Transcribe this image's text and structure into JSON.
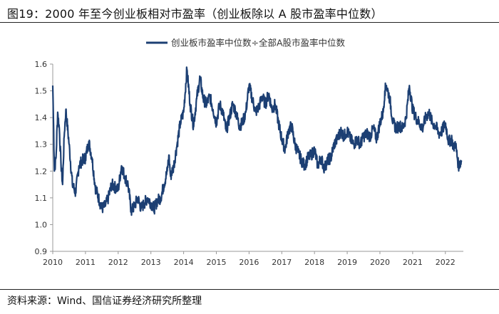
{
  "header": {
    "title": "图19：2000 年至今创业板相对市盈率（创业板除以 A 股市盈率中位数）"
  },
  "footer": {
    "source": "资料来源：Wind、国信证券经济研究所整理"
  },
  "colors": {
    "series": "#1c3f73",
    "axis": "#999999",
    "text": "#333333"
  },
  "chart_data": {
    "type": "line",
    "title": "",
    "xlabel": "",
    "ylabel": "",
    "x_ticks": [
      "2010",
      "2011",
      "2012",
      "2013",
      "2014",
      "2015",
      "2016",
      "2017",
      "2018",
      "2019",
      "2020",
      "2021",
      "2022"
    ],
    "y_ticks": [
      "0.9",
      "1.0",
      "1.1",
      "1.2",
      "1.3",
      "1.4",
      "1.5",
      "1.6"
    ],
    "ylim": [
      0.9,
      1.6
    ],
    "xlim": [
      2010.0,
      2022.55
    ],
    "grid": false,
    "legend": "top-center",
    "series": [
      {
        "name": "创业板市盈率中位数÷全部A股市盈率中位数",
        "x": [
          2010.0,
          2010.02,
          2010.05,
          2010.1,
          2010.15,
          2010.2,
          2010.25,
          2010.3,
          2010.35,
          2010.4,
          2010.5,
          2010.6,
          2010.7,
          2010.8,
          2010.9,
          2011.0,
          2011.1,
          2011.2,
          2011.3,
          2011.4,
          2011.5,
          2011.6,
          2011.7,
          2011.8,
          2012.0,
          2012.1,
          2012.2,
          2012.3,
          2012.4,
          2012.5,
          2012.6,
          2012.7,
          2012.8,
          2012.9,
          2013.0,
          2013.1,
          2013.2,
          2013.3,
          2013.4,
          2013.5,
          2013.55,
          2013.6,
          2013.7,
          2013.8,
          2013.9,
          2014.0,
          2014.1,
          2014.2,
          2014.3,
          2014.4,
          2014.5,
          2014.6,
          2014.7,
          2014.8,
          2014.9,
          2015.0,
          2015.1,
          2015.2,
          2015.3,
          2015.4,
          2015.5,
          2015.6,
          2015.7,
          2015.8,
          2015.9,
          2016.0,
          2016.1,
          2016.2,
          2016.3,
          2016.4,
          2016.5,
          2016.6,
          2016.7,
          2016.8,
          2016.9,
          2017.0,
          2017.1,
          2017.2,
          2017.3,
          2017.4,
          2017.5,
          2017.6,
          2017.7,
          2017.8,
          2017.9,
          2018.0,
          2018.1,
          2018.2,
          2018.3,
          2018.4,
          2018.5,
          2018.6,
          2018.7,
          2018.8,
          2018.9,
          2019.0,
          2019.1,
          2019.2,
          2019.3,
          2019.4,
          2019.5,
          2019.6,
          2019.7,
          2019.8,
          2019.9,
          2020.0,
          2020.1,
          2020.15,
          2020.2,
          2020.3,
          2020.4,
          2020.5,
          2020.6,
          2020.7,
          2020.8,
          2020.9,
          2021.0,
          2021.1,
          2021.2,
          2021.3,
          2021.4,
          2021.5,
          2021.6,
          2021.7,
          2021.8,
          2021.9,
          2022.0,
          2022.1,
          2022.2,
          2022.25,
          2022.3,
          2022.4,
          2022.5
        ],
        "values": [
          1.52,
          1.4,
          1.2,
          1.25,
          1.42,
          1.36,
          1.23,
          1.15,
          1.33,
          1.43,
          1.3,
          1.15,
          1.12,
          1.22,
          1.24,
          1.25,
          1.31,
          1.25,
          1.14,
          1.1,
          1.06,
          1.07,
          1.1,
          1.15,
          1.13,
          1.22,
          1.18,
          1.15,
          1.05,
          1.07,
          1.1,
          1.06,
          1.08,
          1.1,
          1.08,
          1.06,
          1.09,
          1.1,
          1.15,
          1.2,
          1.26,
          1.18,
          1.22,
          1.3,
          1.38,
          1.42,
          1.58,
          1.45,
          1.37,
          1.47,
          1.55,
          1.47,
          1.45,
          1.48,
          1.43,
          1.38,
          1.45,
          1.42,
          1.35,
          1.4,
          1.45,
          1.42,
          1.37,
          1.38,
          1.42,
          1.52,
          1.47,
          1.42,
          1.44,
          1.48,
          1.45,
          1.49,
          1.43,
          1.45,
          1.38,
          1.32,
          1.28,
          1.35,
          1.37,
          1.3,
          1.27,
          1.24,
          1.22,
          1.25,
          1.26,
          1.28,
          1.22,
          1.25,
          1.21,
          1.24,
          1.25,
          1.3,
          1.32,
          1.35,
          1.33,
          1.35,
          1.32,
          1.3,
          1.32,
          1.3,
          1.33,
          1.34,
          1.33,
          1.36,
          1.32,
          1.38,
          1.42,
          1.5,
          1.52,
          1.47,
          1.38,
          1.36,
          1.37,
          1.36,
          1.4,
          1.52,
          1.43,
          1.4,
          1.38,
          1.36,
          1.4,
          1.42,
          1.38,
          1.37,
          1.34,
          1.35,
          1.38,
          1.31,
          1.32,
          1.28,
          1.31,
          1.22,
          1.24
        ]
      }
    ]
  }
}
